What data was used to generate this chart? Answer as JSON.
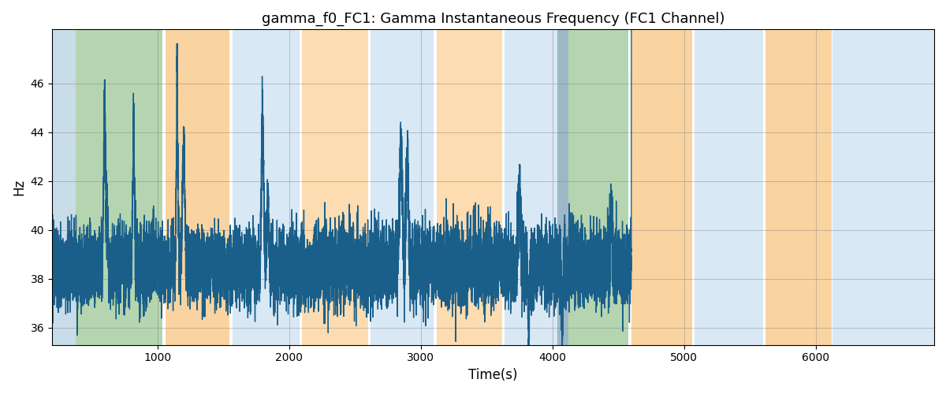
{
  "title": "gamma_f0_FC1: Gamma Instantaneous Frequency (FC1 Channel)",
  "xlabel": "Time(s)",
  "ylabel": "Hz",
  "ylim": [
    35.3,
    48.2
  ],
  "xlim": [
    200,
    6900
  ],
  "bg_regions": [
    {
      "xmin": 200,
      "xmax": 380,
      "color": "#c8dcea"
    },
    {
      "xmin": 380,
      "xmax": 1040,
      "color": "#b5d5b0"
    },
    {
      "xmin": 1060,
      "xmax": 1550,
      "color": "#f9d4a0"
    },
    {
      "xmin": 1570,
      "xmax": 2080,
      "color": "#d8e8f4"
    },
    {
      "xmin": 2100,
      "xmax": 2600,
      "color": "#fcdcb0"
    },
    {
      "xmin": 2620,
      "xmax": 3100,
      "color": "#d8e8f4"
    },
    {
      "xmin": 3120,
      "xmax": 3620,
      "color": "#fcdcb0"
    },
    {
      "xmin": 3640,
      "xmax": 4040,
      "color": "#d8e8f4"
    },
    {
      "xmin": 4040,
      "xmax": 4120,
      "color": "#9eb8c8"
    },
    {
      "xmin": 4120,
      "xmax": 4580,
      "color": "#b5d5b0"
    },
    {
      "xmin": 4600,
      "xmax": 5060,
      "color": "#f9d4a0"
    },
    {
      "xmin": 5080,
      "xmax": 5600,
      "color": "#d8e8f4"
    },
    {
      "xmin": 5620,
      "xmax": 6120,
      "color": "#f9d4a0"
    },
    {
      "xmin": 6130,
      "xmax": 6900,
      "color": "#d8e8f4"
    }
  ],
  "line_color": "#1a5f8a",
  "line_width": 1.0,
  "seed": 123
}
